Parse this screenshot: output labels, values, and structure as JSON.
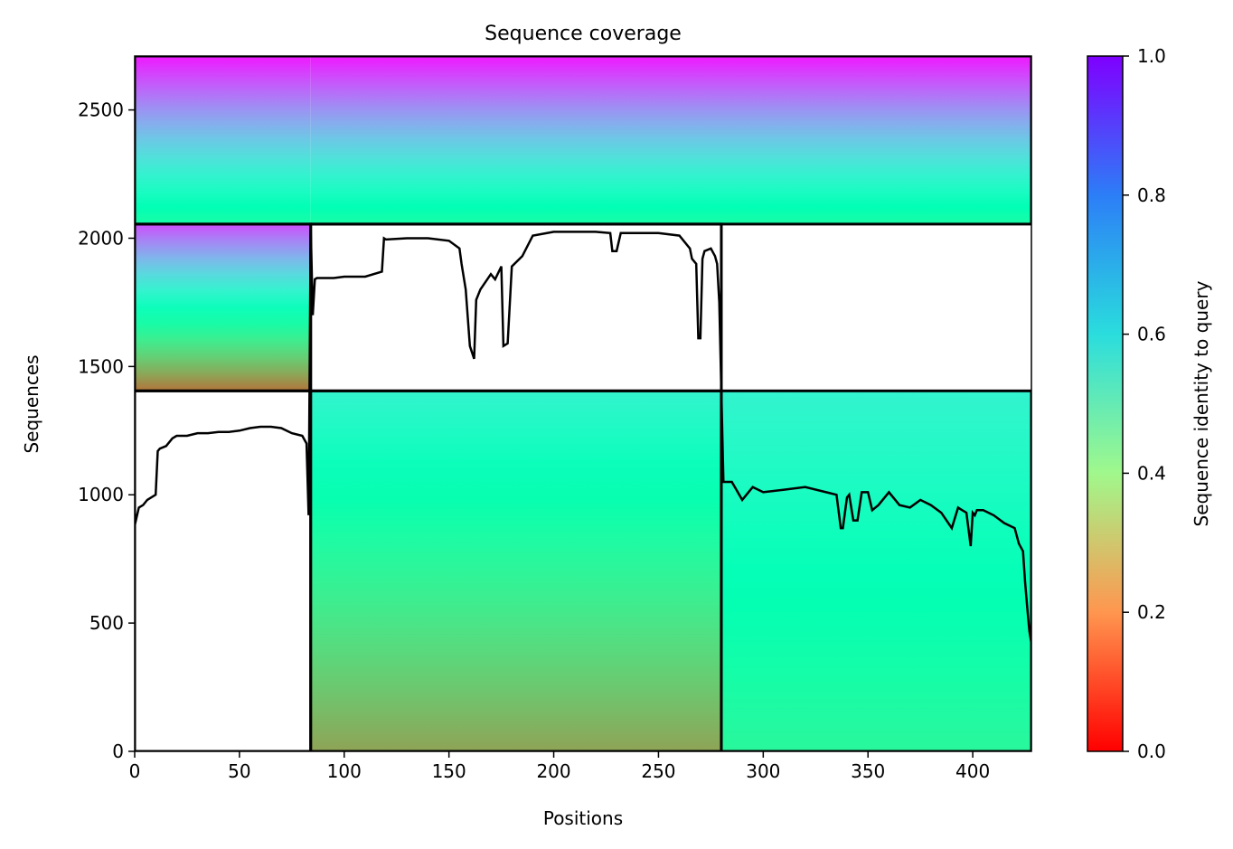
{
  "chart_data": {
    "type": "heatmap",
    "title": "Sequence coverage",
    "xlabel": "Positions",
    "ylabel": "Sequences",
    "xlim": [
      0,
      428
    ],
    "ylim": [
      0,
      2710
    ],
    "xticks": [
      0,
      50,
      100,
      150,
      200,
      250,
      300,
      350,
      400
    ],
    "yticks": [
      0,
      500,
      1000,
      1500,
      2000,
      2500
    ],
    "colorbar": {
      "label": "Sequence identity to query",
      "range": [
        0,
        1
      ],
      "ticks": [
        0.0,
        0.2,
        0.4,
        0.6,
        0.8,
        1.0
      ],
      "tick_labels": [
        "0.0",
        "0.2",
        "0.4",
        "0.6",
        "0.8",
        "1.0"
      ],
      "colormap": "rainbow_r"
    },
    "segments": [
      {
        "x_start": 0,
        "x_end": 84,
        "seq_start": 0,
        "seq_end": 1405
      },
      {
        "x_start": 84,
        "x_end": 280,
        "seq_start": 1405,
        "seq_end": 2055
      },
      {
        "x_start": 280,
        "x_end": 428,
        "seq_start": 0,
        "seq_end": 1405
      },
      {
        "x_start": 84,
        "x_end": 280,
        "seq_start": 0,
        "seq_end": 1405
      },
      {
        "x_start": 0,
        "x_end": 84,
        "seq_start": 1405,
        "seq_end": 2055
      },
      {
        "x_start": 0,
        "x_end": 428,
        "seq_start": 2055,
        "seq_end": 2710
      }
    ],
    "blocks": [
      {
        "x_start": 0,
        "x_end": 84,
        "seq_start": 2055,
        "seq_end": 2710,
        "identity_bottom": 0.45,
        "identity_top": 0.97
      },
      {
        "x_start": 84,
        "x_end": 428,
        "seq_start": 2055,
        "seq_end": 2710,
        "identity_bottom": 0.45,
        "identity_top": 0.97
      },
      {
        "x_start": 0,
        "x_end": 84,
        "seq_start": 1405,
        "seq_end": 2055,
        "identity_bottom": 0.15,
        "identity_top": 0.9
      },
      {
        "x_start": 84,
        "x_end": 280,
        "seq_start": 0,
        "seq_end": 1405,
        "identity_bottom": 0.22,
        "identity_top": 0.6
      },
      {
        "x_start": 280,
        "x_end": 428,
        "seq_start": 0,
        "seq_end": 1405,
        "identity_bottom": 0.42,
        "identity_top": 0.6
      }
    ],
    "coverage_line": {
      "x": [
        0,
        2,
        4,
        6,
        8,
        10,
        11,
        12,
        15,
        18,
        20,
        25,
        30,
        35,
        40,
        45,
        50,
        55,
        60,
        65,
        70,
        75,
        80,
        82,
        83,
        84,
        85,
        86,
        87,
        90,
        95,
        100,
        110,
        118,
        119,
        120,
        130,
        140,
        150,
        155,
        156,
        158,
        160,
        162,
        163,
        165,
        170,
        172,
        175,
        176,
        178,
        180,
        185,
        190,
        200,
        210,
        220,
        227,
        228,
        230,
        232,
        240,
        250,
        260,
        265,
        266,
        268,
        269,
        270,
        271,
        272,
        275,
        277,
        278,
        279,
        280,
        281,
        285,
        290,
        295,
        300,
        310,
        320,
        330,
        335,
        337,
        338,
        340,
        341,
        343,
        345,
        347,
        350,
        352,
        355,
        360,
        365,
        370,
        375,
        380,
        385,
        390,
        393,
        395,
        397,
        399,
        400,
        401,
        402,
        405,
        410,
        415,
        420,
        422,
        424,
        425,
        426,
        427,
        428
      ],
      "y": [
        880,
        950,
        960,
        980,
        990,
        1000,
        1170,
        1180,
        1190,
        1220,
        1230,
        1230,
        1240,
        1240,
        1245,
        1245,
        1250,
        1260,
        1265,
        1265,
        1260,
        1240,
        1230,
        1200,
        920,
        2050,
        1700,
        1840,
        1845,
        1845,
        1845,
        1850,
        1850,
        1870,
        2000,
        1995,
        2000,
        2000,
        1990,
        1960,
        1900,
        1800,
        1580,
        1530,
        1760,
        1800,
        1860,
        1840,
        1890,
        1580,
        1590,
        1890,
        1930,
        2010,
        2025,
        2025,
        2025,
        2020,
        1950,
        1950,
        2020,
        2020,
        2020,
        2010,
        1960,
        1920,
        1900,
        1610,
        1610,
        1920,
        1950,
        1960,
        1930,
        1900,
        1750,
        1400,
        1050,
        1050,
        980,
        1030,
        1010,
        1020,
        1030,
        1010,
        1000,
        870,
        870,
        990,
        1000,
        900,
        900,
        1010,
        1010,
        940,
        960,
        1010,
        960,
        950,
        980,
        960,
        930,
        870,
        950,
        940,
        930,
        800,
        930,
        920,
        940,
        940,
        920,
        890,
        870,
        810,
        780,
        660,
        560,
        470,
        420
      ]
    }
  }
}
